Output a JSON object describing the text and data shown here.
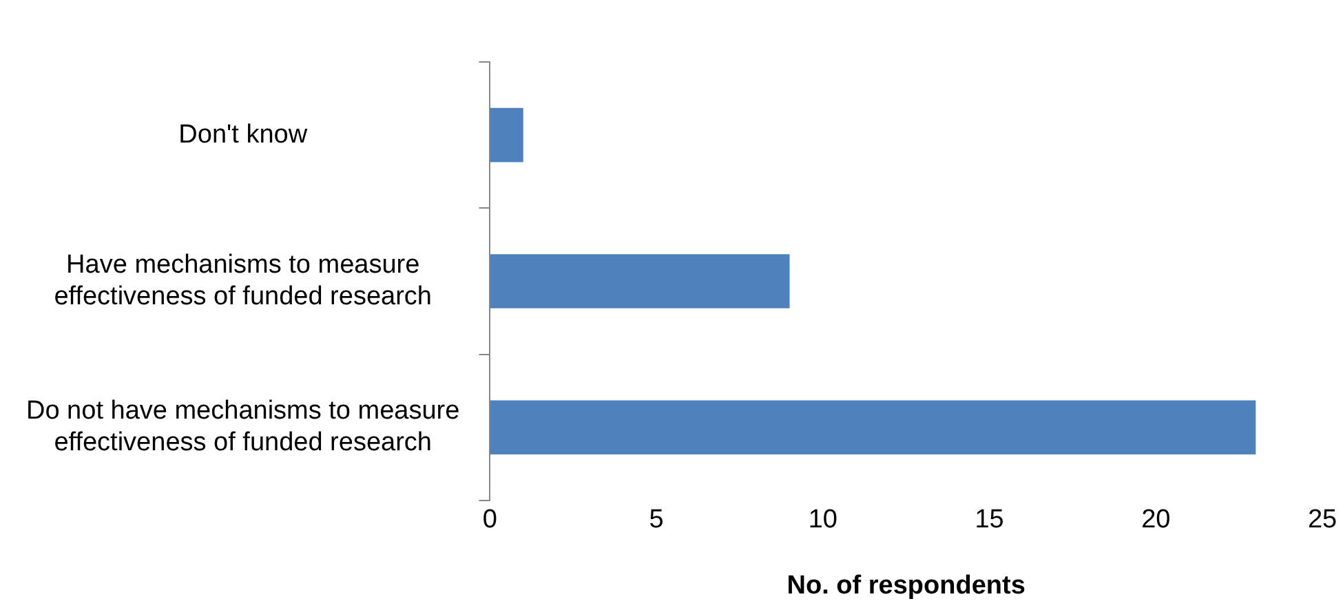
{
  "chart_data": {
    "type": "bar",
    "orientation": "horizontal",
    "xlabel": "No. of respondents",
    "categories": [
      "Don't know",
      "Have mechanisms to measure effectiveness of funded research",
      "Do not have mechanisms to measure effectiveness of funded research"
    ],
    "values": [
      1,
      9,
      23
    ],
    "color": "#4f81bd",
    "xlim": [
      0,
      25
    ],
    "xticks": [
      0,
      5,
      10,
      15,
      20,
      25
    ],
    "grid": false,
    "legend": false
  }
}
